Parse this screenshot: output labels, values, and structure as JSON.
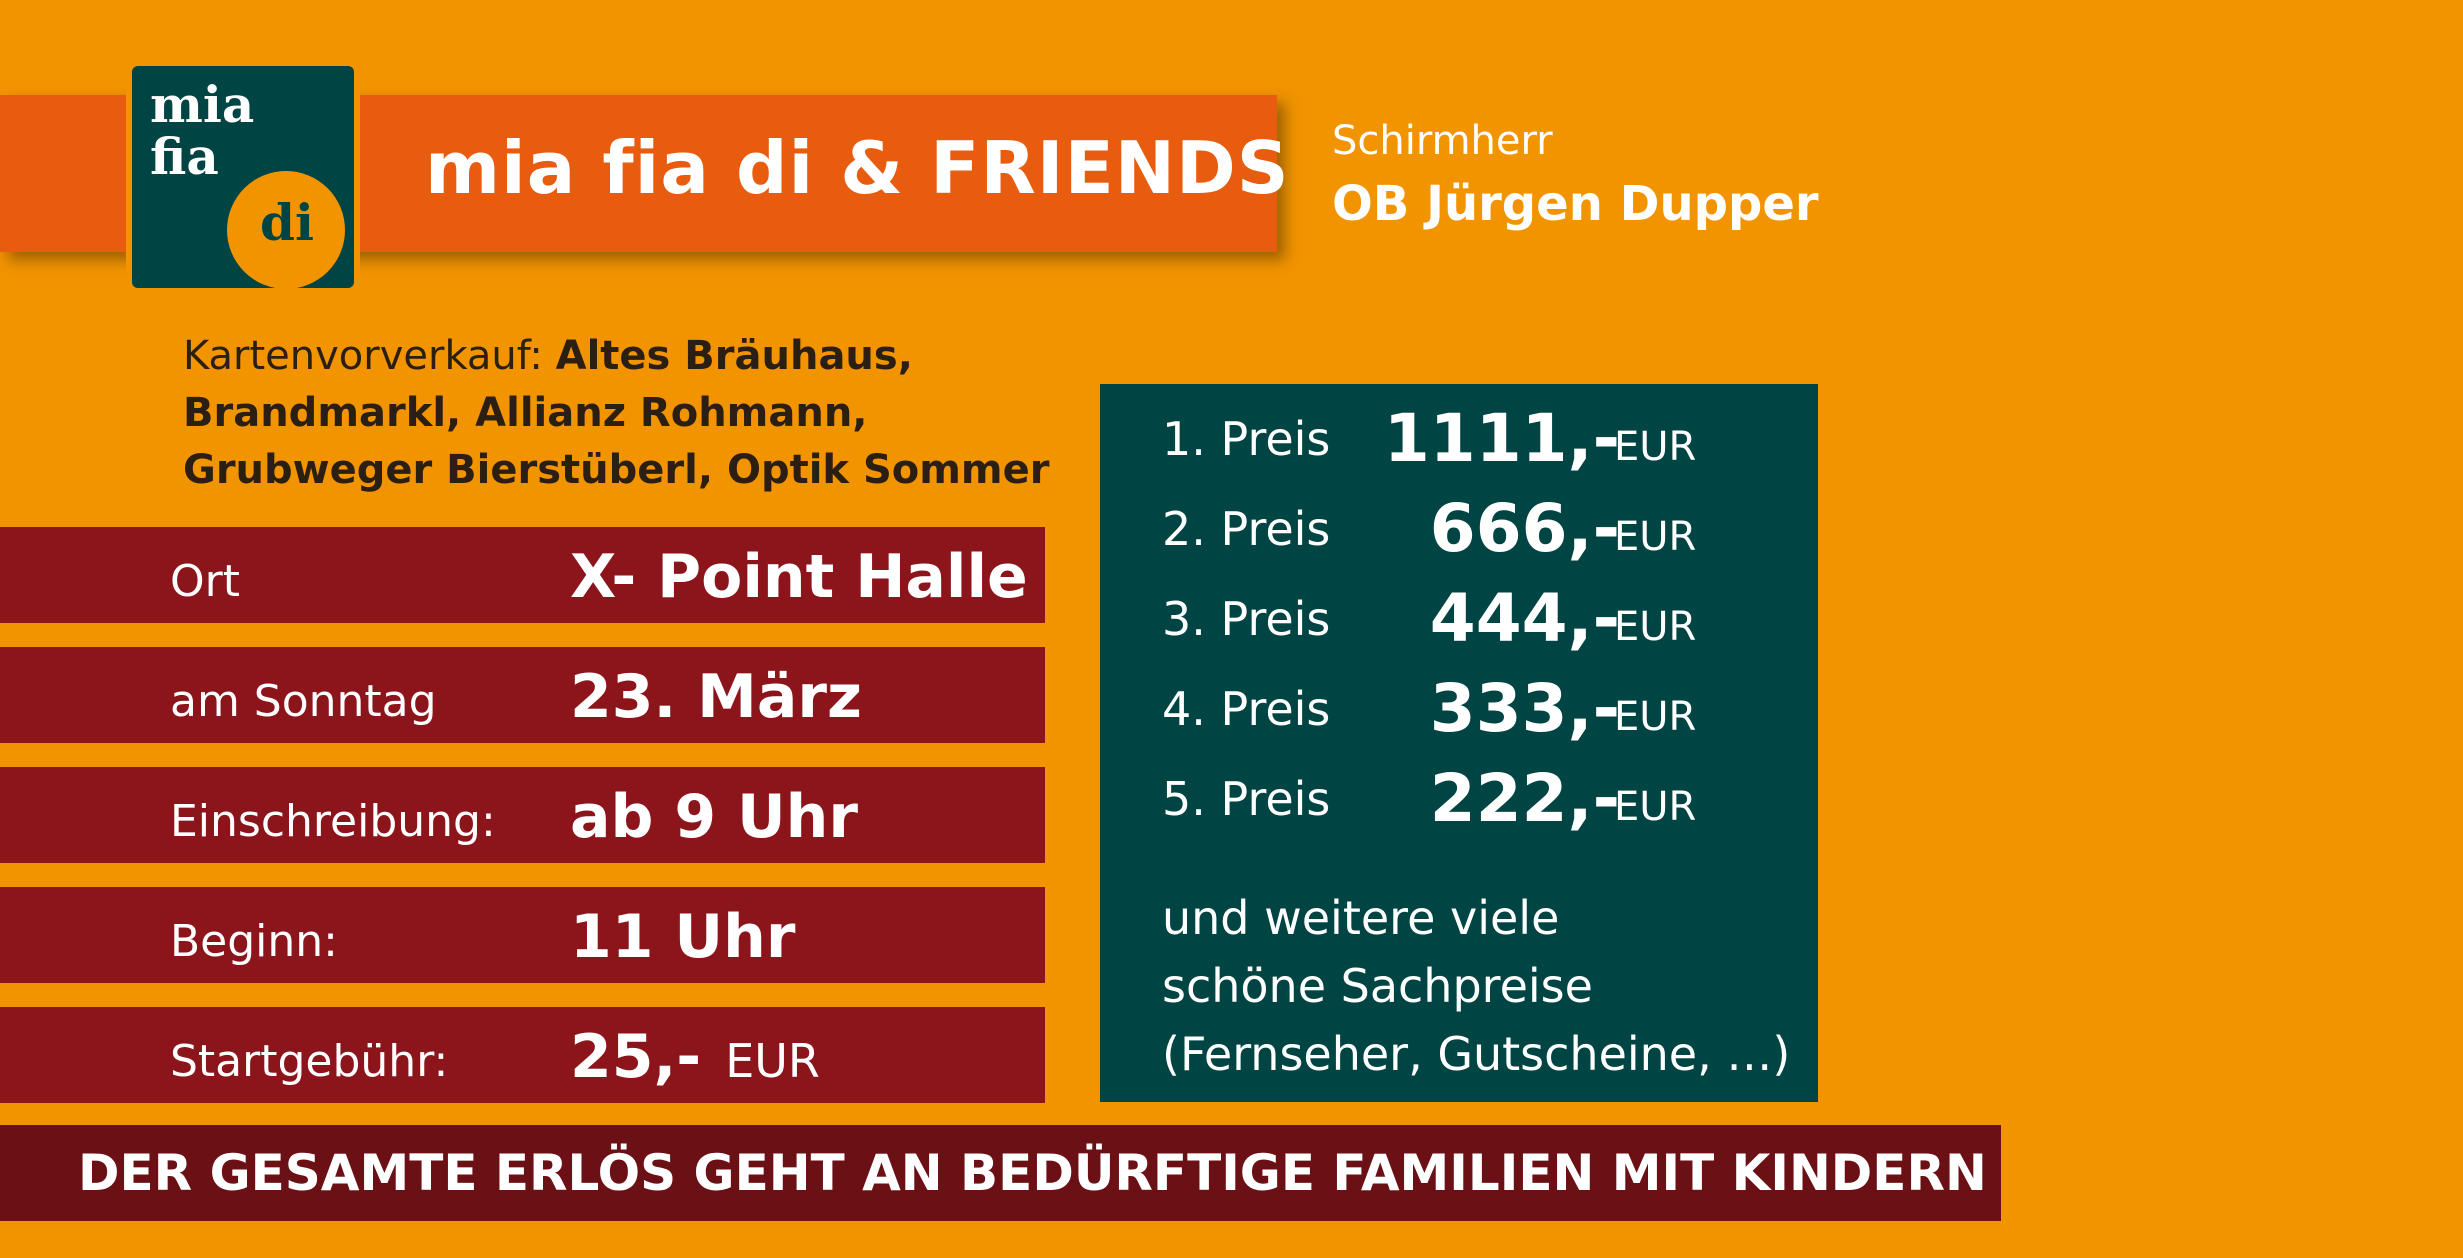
{
  "header": {
    "logo_words": [
      "mia",
      "fia",
      "di"
    ],
    "title": "mia fia di & FRIENDS"
  },
  "patron": {
    "label": "Schirmherr",
    "name": "OB Jürgen Dupper"
  },
  "presale": {
    "label": "Kartenvorverkauf:",
    "line1": "Altes Bräuhaus,",
    "line2": "Brandmarkl, Allianz Rohmann,",
    "line3": "Grubweger Bierstüberl, Optik Sommer"
  },
  "info": [
    {
      "label": "Ort",
      "value": "X- Point Halle",
      "unit": ""
    },
    {
      "label": "am Sonntag",
      "value": "23. März",
      "unit": ""
    },
    {
      "label": "Einschreibung:",
      "value": "ab 9 Uhr",
      "unit": ""
    },
    {
      "label": "Beginn:",
      "value": "11 Uhr",
      "unit": ""
    },
    {
      "label": "Startgebühr:",
      "value": "25,-",
      "unit": "EUR"
    }
  ],
  "prizes": [
    {
      "label": "1. Preis",
      "amount": "1111,-",
      "unit": "EUR"
    },
    {
      "label": "2. Preis",
      "amount": "666,-",
      "unit": "EUR"
    },
    {
      "label": "3. Preis",
      "amount": "444,-",
      "unit": "EUR"
    },
    {
      "label": "4. Preis",
      "amount": "333,-",
      "unit": "EUR"
    },
    {
      "label": "5. Preis",
      "amount": "222,-",
      "unit": "EUR"
    }
  ],
  "prize_extra": {
    "line1": "und weitere viele",
    "line2": "schöne Sachpreise",
    "line3": "(Fernseher, Gutscheine, …)"
  },
  "banner": "DER GESAMTE ERLÖS GEHT AN BEDÜRFTIGE FAMILIEN MIT KINDERN",
  "colors": {
    "background": "#f29400",
    "header_band": "#e85c0f",
    "logo_bg": "#004543",
    "info_rows": "#8b151b",
    "prize_box": "#004543",
    "banner": "#6b1015"
  }
}
